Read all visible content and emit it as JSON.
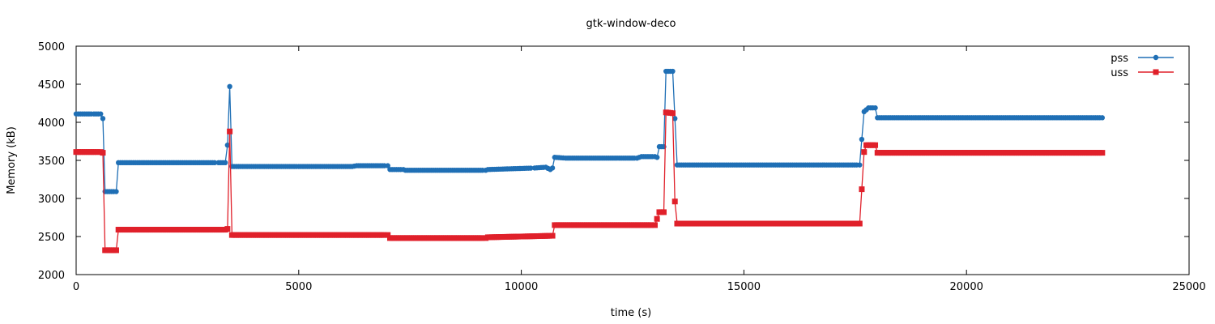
{
  "colors": {
    "pss": "#1f6fb5",
    "uss": "#e0202a",
    "axis": "#000000",
    "background": "#ffffff"
  },
  "chart_data": {
    "type": "line",
    "title": "gtk-window-deco",
    "xlabel": "time (s)",
    "ylabel": "Memory (kB)",
    "xlim": [
      0,
      25000
    ],
    "ylim": [
      2000,
      5000
    ],
    "xticks": [
      "0",
      "5000",
      "10000",
      "15000",
      "20000",
      "25000"
    ],
    "yticks": [
      "2000",
      "2500",
      "3000",
      "3500",
      "4000",
      "4500",
      "5000"
    ],
    "grid": false,
    "legend_position": "top-right",
    "series": [
      {
        "name": "pss",
        "marker": "circle",
        "points": [
          [
            0,
            4110
          ],
          [
            400,
            4110
          ],
          [
            550,
            4110
          ],
          [
            600,
            4050
          ],
          [
            650,
            3090
          ],
          [
            900,
            3090
          ],
          [
            950,
            3470
          ],
          [
            3200,
            3470
          ],
          [
            3350,
            3470
          ],
          [
            3400,
            3700
          ],
          [
            3450,
            4470
          ],
          [
            3500,
            3420
          ],
          [
            3600,
            3420
          ],
          [
            5000,
            3420
          ],
          [
            6200,
            3420
          ],
          [
            6300,
            3430
          ],
          [
            7000,
            3430
          ],
          [
            7050,
            3380
          ],
          [
            7350,
            3380
          ],
          [
            7400,
            3370
          ],
          [
            9200,
            3370
          ],
          [
            9250,
            3380
          ],
          [
            10300,
            3400
          ],
          [
            10550,
            3410
          ],
          [
            10650,
            3380
          ],
          [
            10700,
            3400
          ],
          [
            10750,
            3540
          ],
          [
            11000,
            3530
          ],
          [
            12600,
            3530
          ],
          [
            12700,
            3550
          ],
          [
            13000,
            3550
          ],
          [
            13050,
            3540
          ],
          [
            13100,
            3680
          ],
          [
            13200,
            3680
          ],
          [
            13250,
            4670
          ],
          [
            13400,
            4670
          ],
          [
            13450,
            4050
          ],
          [
            13500,
            3440
          ],
          [
            17600,
            3440
          ],
          [
            17700,
            4140
          ],
          [
            17800,
            4190
          ],
          [
            17950,
            4190
          ],
          [
            18000,
            4060
          ],
          [
            23050,
            4060
          ]
        ]
      },
      {
        "name": "uss",
        "marker": "square",
        "points": [
          [
            0,
            3610
          ],
          [
            550,
            3610
          ],
          [
            600,
            3600
          ],
          [
            650,
            2320
          ],
          [
            900,
            2320
          ],
          [
            950,
            2590
          ],
          [
            3350,
            2590
          ],
          [
            3400,
            2600
          ],
          [
            3450,
            3880
          ],
          [
            3500,
            2520
          ],
          [
            7000,
            2520
          ],
          [
            7050,
            2480
          ],
          [
            9200,
            2480
          ],
          [
            9250,
            2490
          ],
          [
            10000,
            2500
          ],
          [
            10700,
            2510
          ],
          [
            10750,
            2650
          ],
          [
            13000,
            2650
          ],
          [
            13100,
            2820
          ],
          [
            13200,
            2820
          ],
          [
            13250,
            4130
          ],
          [
            13400,
            4120
          ],
          [
            13450,
            2960
          ],
          [
            13500,
            2670
          ],
          [
            17600,
            2670
          ],
          [
            17700,
            3610
          ],
          [
            17750,
            3700
          ],
          [
            17950,
            3700
          ],
          [
            18000,
            3600
          ],
          [
            23050,
            3600
          ]
        ]
      }
    ]
  }
}
